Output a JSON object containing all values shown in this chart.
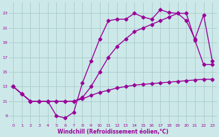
{
  "xlabel": "Windchill (Refroidissement éolien,°C)",
  "xlim": [
    -0.5,
    23.5
  ],
  "ylim": [
    8.0,
    24.5
  ],
  "xticks": [
    0,
    1,
    2,
    3,
    4,
    5,
    6,
    7,
    8,
    9,
    10,
    11,
    12,
    13,
    14,
    15,
    16,
    17,
    18,
    19,
    20,
    21,
    22,
    23
  ],
  "yticks": [
    9,
    11,
    13,
    15,
    17,
    19,
    21,
    23
  ],
  "line_color": "#990099",
  "bg_color": "#cce8e8",
  "grid_color": "#aacccc",
  "line1_x": [
    0,
    1,
    2,
    3,
    4,
    5,
    6,
    7,
    8,
    9,
    10,
    11,
    12,
    13,
    14,
    15,
    16,
    17,
    18,
    19,
    20,
    21,
    22,
    23
  ],
  "line1_y": [
    13.0,
    12.0,
    11.0,
    11.0,
    11.0,
    9.0,
    8.7,
    9.5,
    13.5,
    16.5,
    19.5,
    22.0,
    22.2,
    22.2,
    23.0,
    22.5,
    22.2,
    23.5,
    23.1,
    23.0,
    22.0,
    19.5,
    22.8,
    16.5
  ],
  "line2_x": [
    0,
    1,
    2,
    3,
    4,
    5,
    6,
    7,
    8,
    9,
    10,
    11,
    12,
    13,
    14,
    15,
    16,
    17,
    18,
    19,
    20,
    21,
    22,
    23
  ],
  "line2_y": [
    13.0,
    12.0,
    11.0,
    11.0,
    11.0,
    11.0,
    11.0,
    11.0,
    11.5,
    13.0,
    15.0,
    17.0,
    18.5,
    19.5,
    20.5,
    21.0,
    21.5,
    22.0,
    22.5,
    23.0,
    23.0,
    19.3,
    16.0,
    16.0
  ],
  "line3_x": [
    0,
    1,
    2,
    3,
    4,
    5,
    6,
    7,
    8,
    9,
    10,
    11,
    12,
    13,
    14,
    15,
    16,
    17,
    18,
    19,
    20,
    21,
    22,
    23
  ],
  "line3_y": [
    13.0,
    12.0,
    11.0,
    11.0,
    11.0,
    11.0,
    11.0,
    11.0,
    11.3,
    11.8,
    12.2,
    12.5,
    12.8,
    13.0,
    13.2,
    13.3,
    13.4,
    13.5,
    13.6,
    13.7,
    13.8,
    13.9,
    14.0,
    14.0
  ],
  "marker": "D",
  "markersize": 2.5,
  "linewidth": 1.0
}
